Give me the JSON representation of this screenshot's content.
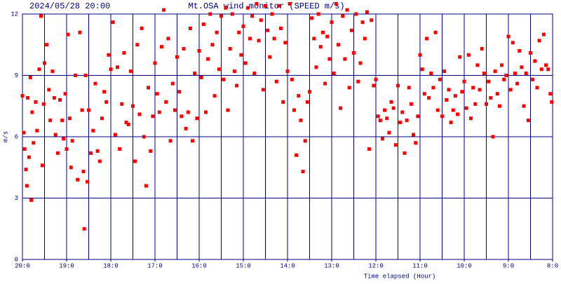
{
  "chart_data": {
    "type": "scatter",
    "title": "Mt.OSA wind monitor (SPEED m/s)",
    "subtitle": "2024/05/28 20:00",
    "x_label": "Time elapsed (Hour)",
    "y_label": "m/s",
    "xlim": [
      0,
      12
    ],
    "ylim": [
      0,
      12
    ],
    "xticks": [
      {
        "value": 0,
        "label": "20:0"
      },
      {
        "value": 1,
        "label": "19:0"
      },
      {
        "value": 2,
        "label": "18:0"
      },
      {
        "value": 3,
        "label": "17:0"
      },
      {
        "value": 4,
        "label": "16:0"
      },
      {
        "value": 5,
        "label": "15:0"
      },
      {
        "value": 6,
        "label": "14:0"
      },
      {
        "value": 7,
        "label": "13:0"
      },
      {
        "value": 8,
        "label": "12:0"
      },
      {
        "value": 9,
        "label": "11:0"
      },
      {
        "value": 10,
        "label": "10:0"
      },
      {
        "value": 11,
        "label": "9:0"
      },
      {
        "value": 12,
        "label": "8:0"
      }
    ],
    "yticks": [
      0,
      3,
      6,
      9,
      12
    ],
    "xgrid": [
      0.5,
      1,
      1.5,
      2,
      2.5,
      3,
      3.5,
      4,
      4.5,
      5,
      5.5,
      6,
      6.5,
      7,
      7.5,
      8,
      8.5,
      9,
      9.5,
      10,
      10.5,
      11,
      11.5
    ],
    "grid": true,
    "series": [
      {
        "name": "SPEED",
        "color": "#ff0000",
        "x": [
          0.0,
          0.03,
          0.05,
          0.08,
          0.1,
          0.12,
          0.15,
          0.18,
          0.2,
          0.22,
          0.25,
          0.3,
          0.33,
          0.38,
          0.42,
          0.45,
          0.48,
          0.5,
          0.55,
          0.6,
          0.63,
          0.68,
          0.72,
          0.75,
          0.8,
          0.85,
          0.9,
          0.93,
          0.97,
          1.0,
          1.03,
          1.07,
          1.1,
          1.13,
          1.2,
          1.25,
          1.3,
          1.35,
          1.38,
          1.4,
          1.43,
          1.47,
          1.5,
          1.55,
          1.6,
          1.65,
          1.7,
          1.75,
          1.8,
          1.85,
          1.9,
          1.95,
          2.0,
          2.05,
          2.1,
          2.15,
          2.2,
          2.25,
          2.3,
          2.35,
          2.4,
          2.45,
          2.5,
          2.55,
          2.6,
          2.65,
          2.7,
          2.75,
          2.8,
          2.85,
          2.9,
          2.95,
          3.0,
          3.05,
          3.1,
          3.15,
          3.2,
          3.25,
          3.3,
          3.35,
          3.4,
          3.45,
          3.5,
          3.55,
          3.6,
          3.65,
          3.7,
          3.75,
          3.8,
          3.85,
          3.9,
          3.95,
          4.0,
          4.05,
          4.1,
          4.15,
          4.2,
          4.25,
          4.3,
          4.35,
          4.4,
          4.45,
          4.5,
          4.55,
          4.6,
          4.65,
          4.7,
          4.75,
          4.8,
          4.85,
          4.9,
          4.95,
          5.0,
          5.05,
          5.1,
          5.15,
          5.2,
          5.25,
          5.3,
          5.35,
          5.4,
          5.45,
          5.5,
          5.55,
          5.6,
          5.65,
          5.7,
          5.75,
          5.8,
          5.85,
          5.9,
          5.95,
          6.0,
          6.05,
          6.1,
          6.15,
          6.2,
          6.25,
          6.3,
          6.35,
          6.4,
          6.45,
          6.5,
          6.55,
          6.6,
          6.65,
          6.7,
          6.75,
          6.8,
          6.85,
          6.9,
          6.95,
          7.0,
          7.05,
          7.1,
          7.15,
          7.2,
          7.25,
          7.3,
          7.35,
          7.4,
          7.45,
          7.5,
          7.55,
          7.6,
          7.65,
          7.7,
          7.75,
          7.8,
          7.85,
          7.9,
          7.95,
          8.0,
          8.05,
          8.1,
          8.15,
          8.2,
          8.25,
          8.3,
          8.35,
          8.4,
          8.45,
          8.5,
          8.55,
          8.6,
          8.65,
          8.7,
          8.75,
          8.8,
          8.85,
          8.9,
          8.95,
          9.0,
          9.05,
          9.1,
          9.15,
          9.2,
          9.25,
          9.3,
          9.35,
          9.4,
          9.45,
          9.5,
          9.55,
          9.6,
          9.65,
          9.7,
          9.75,
          9.8,
          9.85,
          9.9,
          9.95,
          10.0,
          10.05,
          10.1,
          10.15,
          10.2,
          10.25,
          10.3,
          10.35,
          10.4,
          10.45,
          10.5,
          10.55,
          10.6,
          10.65,
          10.7,
          10.75,
          10.8,
          10.85,
          10.9,
          10.95,
          11.0,
          11.05,
          11.1,
          11.15,
          11.2,
          11.25,
          11.3,
          11.35,
          11.4,
          11.45,
          11.5,
          11.55,
          11.6,
          11.65,
          11.7,
          11.75,
          11.8,
          11.85,
          11.9,
          11.95,
          11.98
        ],
        "values": [
          8.0,
          6.2,
          5.4,
          4.4,
          3.6,
          7.9,
          5.0,
          8.9,
          2.9,
          7.2,
          5.7,
          7.7,
          6.3,
          9.3,
          11.9,
          4.6,
          7.6,
          9.6,
          10.5,
          8.3,
          6.8,
          9.2,
          7.9,
          6.1,
          5.2,
          7.8,
          6.8,
          5.9,
          8.1,
          5.4,
          11.0,
          6.9,
          4.5,
          5.8,
          9.0,
          3.9,
          11.1,
          7.3,
          4.3,
          1.5,
          9.0,
          3.8,
          7.3,
          5.2,
          6.3,
          8.6,
          5.3,
          4.8,
          6.9,
          8.2,
          7.7,
          10.0,
          9.3,
          11.6,
          6.1,
          9.4,
          5.4,
          7.6,
          10.1,
          6.7,
          6.6,
          9.2,
          7.5,
          4.8,
          10.5,
          7.1,
          11.3,
          6.0,
          3.6,
          8.4,
          5.3,
          7.0,
          9.6,
          8.1,
          7.2,
          10.4,
          12.2,
          7.7,
          10.8,
          5.8,
          8.6,
          7.3,
          9.9,
          8.2,
          7.0,
          10.3,
          6.4,
          7.2,
          11.3,
          5.8,
          9.1,
          6.9,
          10.2,
          8.9,
          11.5,
          7.2,
          9.8,
          12.0,
          10.5,
          8.0,
          11.1,
          9.3,
          11.9,
          8.8,
          12.3,
          7.3,
          10.3,
          12.0,
          9.2,
          8.5,
          11.1,
          10.0,
          11.4,
          9.6,
          12.3,
          10.8,
          11.9,
          9.1,
          12.5,
          10.7,
          11.7,
          8.3,
          12.4,
          11.2,
          9.9,
          12.0,
          10.8,
          8.7,
          12.4,
          11.3,
          7.7,
          10.6,
          9.2,
          12.5,
          8.8,
          7.3,
          5.1,
          8.0,
          6.8,
          4.3,
          5.8,
          7.7,
          8.2,
          11.8,
          10.8,
          9.4,
          12.0,
          10.4,
          11.1,
          8.6,
          10.9,
          9.8,
          11.6,
          9.1,
          12.5,
          10.5,
          7.4,
          11.9,
          9.8,
          12.2,
          8.4,
          11.2,
          10.1,
          12.0,
          8.7,
          9.6,
          11.6,
          10.8,
          12.1,
          5.4,
          11.7,
          8.5,
          8.8,
          7.0,
          6.8,
          5.9,
          7.3,
          6.9,
          6.2,
          7.7,
          7.4,
          5.6,
          8.5,
          6.7,
          7.2,
          5.2,
          6.8,
          8.4,
          7.6,
          6.1,
          5.7,
          7.0,
          10.0,
          9.3,
          8.1,
          10.8,
          7.9,
          9.1,
          8.4,
          11.1,
          7.3,
          8.8,
          7.0,
          9.2,
          7.8,
          8.3,
          6.7,
          7.3,
          8.0,
          7.1,
          9.9,
          8.2,
          8.7,
          7.4,
          10.0,
          6.9,
          8.4,
          7.6,
          9.5,
          8.3,
          10.3,
          9.1,
          7.6,
          8.7,
          7.9,
          6.0,
          9.2,
          8.1,
          7.5,
          9.5,
          8.8,
          9.0,
          10.9,
          8.3,
          10.6,
          9.1,
          8.6,
          10.2,
          9.4,
          7.5,
          9.1,
          6.8,
          10.1,
          8.8,
          9.7,
          8.4,
          10.7,
          9.3,
          11.0,
          9.5,
          9.3,
          8.1,
          7.7
        ]
      }
    ]
  }
}
